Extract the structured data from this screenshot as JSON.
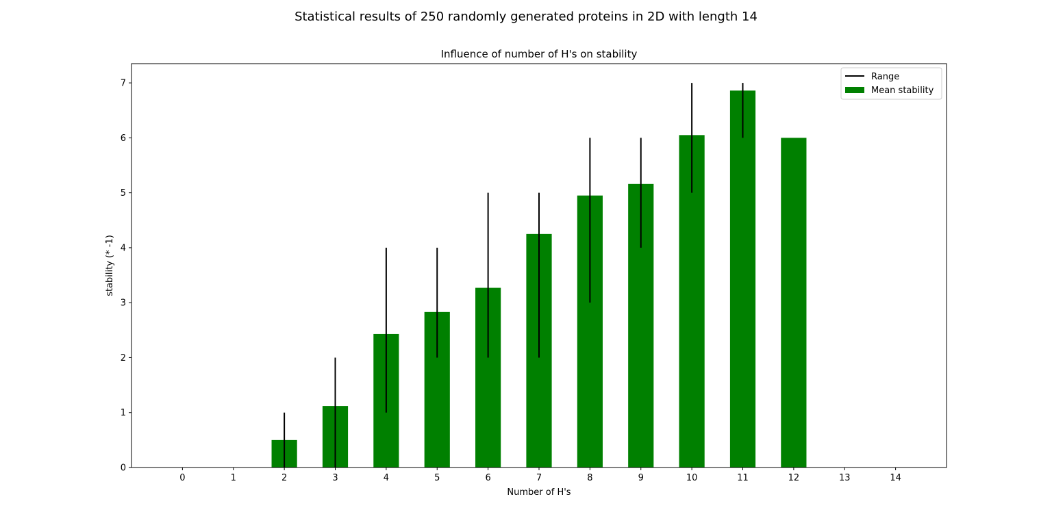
{
  "chart_data": {
    "type": "bar",
    "suptitle": "Statistical results of 250 randomly generated proteins in 2D with length 14",
    "title": "Influence of number of H's on stability",
    "xlabel": "Number of H's",
    "ylabel": "stability (* -1)",
    "categories": [
      "0",
      "1",
      "2",
      "3",
      "4",
      "5",
      "6",
      "7",
      "8",
      "9",
      "10",
      "11",
      "12",
      "13",
      "14"
    ],
    "x": [
      0,
      1,
      2,
      3,
      4,
      5,
      6,
      7,
      8,
      9,
      10,
      11,
      12,
      13,
      14
    ],
    "ylim": [
      0,
      7.35
    ],
    "yticks": [
      0,
      1,
      2,
      3,
      4,
      5,
      6,
      7
    ],
    "legend_position": "upper-right",
    "grid": false,
    "series": [
      {
        "name": "Mean stability",
        "kind": "bar",
        "color": "#008000",
        "values": [
          0,
          0,
          0.5,
          1.12,
          2.43,
          2.83,
          3.27,
          4.25,
          4.95,
          5.16,
          6.05,
          6.86,
          6.0,
          0,
          0
        ]
      },
      {
        "name": "Range",
        "kind": "range",
        "color": "#000000",
        "min": [
          0,
          0,
          0,
          0,
          1,
          2,
          2,
          2,
          3,
          4,
          5,
          6,
          6,
          0,
          0
        ],
        "max": [
          0,
          0,
          1,
          2,
          4,
          4,
          5,
          5,
          6,
          6,
          7,
          7,
          6,
          0,
          0
        ]
      }
    ]
  }
}
